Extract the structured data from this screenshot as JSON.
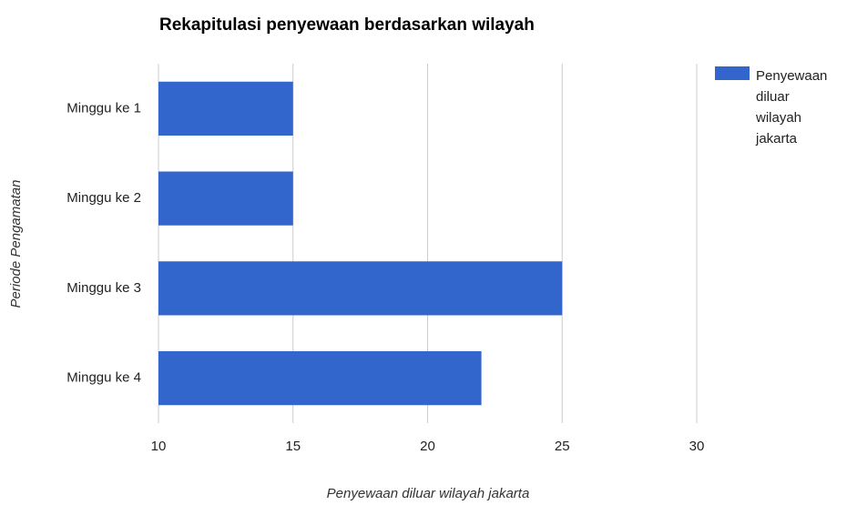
{
  "chart_data": {
    "type": "bar",
    "orientation": "horizontal",
    "title": "Rekapitulasi penyewaan berdasarkan wilayah",
    "x_label": "Penyewaan diluar wilayah jakarta",
    "y_label": "Periode Pengamatan",
    "categories": [
      "Minggu ke 1",
      "Minggu ke 2",
      "Minggu ke 3",
      "Minggu ke 4"
    ],
    "series": [
      {
        "name": "Penyewaan diluar wilayah jakarta",
        "color": "#3366cc",
        "values": [
          15,
          15,
          25,
          22
        ]
      }
    ],
    "xlim": [
      10,
      30
    ],
    "xticks": [
      10,
      15,
      20,
      25,
      30
    ],
    "grid": true,
    "legend": "right"
  }
}
